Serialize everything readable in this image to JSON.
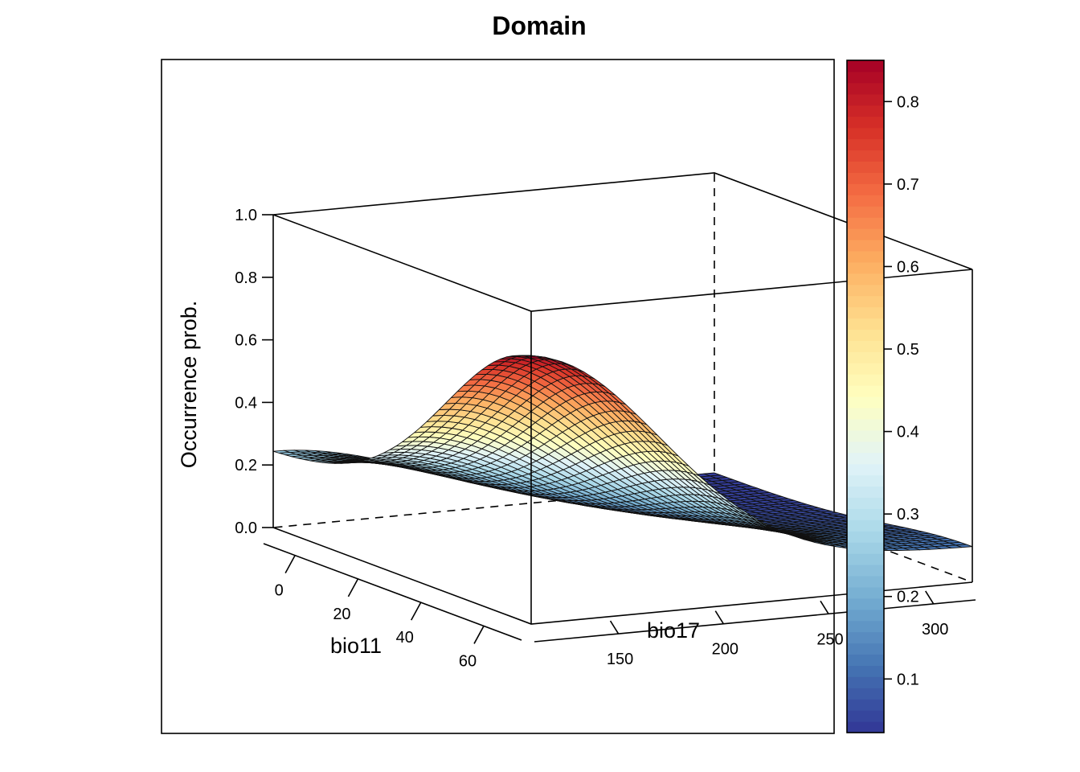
{
  "chart_data": {
    "type": "surface-3d",
    "title": "Domain",
    "xlabel": "bio11",
    "ylabel": "bio17",
    "zlabel": "Occurrence prob.",
    "x_range": [
      -10,
      72
    ],
    "y_range": [
      110,
      320
    ],
    "zlim": [
      0,
      1
    ],
    "x_ticks": [
      {
        "value": 0,
        "label": "0"
      },
      {
        "value": 20,
        "label": "20"
      },
      {
        "value": 40,
        "label": "40"
      },
      {
        "value": 60,
        "label": "60"
      }
    ],
    "y_ticks": [
      {
        "value": 150,
        "label": "150"
      },
      {
        "value": 200,
        "label": "200"
      },
      {
        "value": 250,
        "label": "250"
      },
      {
        "value": 300,
        "label": "300"
      }
    ],
    "z_ticks": [
      {
        "value": 0.0,
        "label": "0.0"
      },
      {
        "value": 0.2,
        "label": "0.2"
      },
      {
        "value": 0.4,
        "label": "0.4"
      },
      {
        "value": 0.6,
        "label": "0.6"
      },
      {
        "value": 0.8,
        "label": "0.8"
      },
      {
        "value": 1.0,
        "label": "1.0"
      }
    ],
    "surface": {
      "peak": {
        "x": 72,
        "y": 110,
        "z": 0.85
      },
      "corner_values": [
        {
          "x": -10,
          "y": 110,
          "z": 0.26
        },
        {
          "x": 72,
          "y": 110,
          "z": 0.85
        },
        {
          "x": 72,
          "y": 320,
          "z": 0.12
        },
        {
          "x": -10,
          "y": 320,
          "z": 0.04
        }
      ],
      "grid_x": 42,
      "grid_y": 42
    },
    "colorbar": {
      "palette": "RdYlBu (reversed)",
      "range": [
        0.035,
        0.85
      ],
      "ticks": [
        {
          "value": 0.1,
          "label": "0.1"
        },
        {
          "value": 0.2,
          "label": "0.2"
        },
        {
          "value": 0.3,
          "label": "0.3"
        },
        {
          "value": 0.4,
          "label": "0.4"
        },
        {
          "value": 0.5,
          "label": "0.5"
        },
        {
          "value": 0.6,
          "label": "0.6"
        },
        {
          "value": 0.7,
          "label": "0.7"
        },
        {
          "value": 0.8,
          "label": "0.8"
        }
      ],
      "colors": [
        "#313695",
        "#4575b4",
        "#74add1",
        "#abd9e9",
        "#e0f3f8",
        "#ffffbf",
        "#fee090",
        "#fdae61",
        "#f46d43",
        "#d73027",
        "#a50026"
      ]
    }
  }
}
